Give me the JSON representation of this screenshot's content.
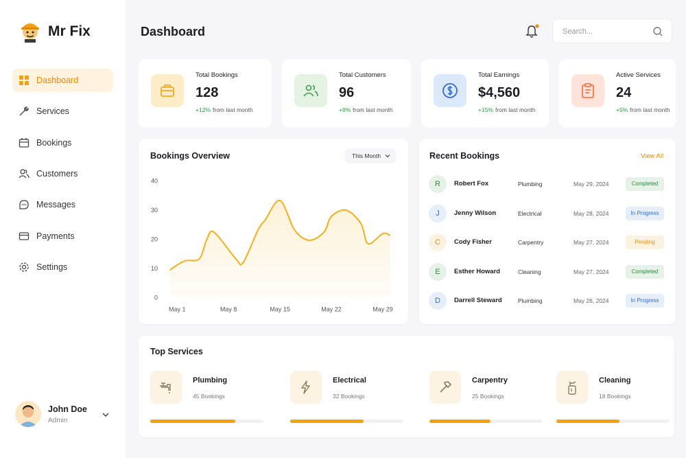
{
  "brand": "Mr Fix",
  "nav": [
    "Dashboard",
    "Services",
    "Bookings",
    "Customers",
    "Messages",
    "Payments",
    "Settings"
  ],
  "user": {
    "name": "John Doe",
    "role": "Admin"
  },
  "header": {
    "title": "Dashboard",
    "search_placeholder": "Search..."
  },
  "stats": [
    {
      "label": "Total Bookings",
      "value": "128",
      "change": "+12%",
      "note": "from last month"
    },
    {
      "label": "Total Customers",
      "value": "96",
      "change": "+8%",
      "note": "from last month"
    },
    {
      "label": "Total Earnings",
      "value": "$4,560",
      "change": "+15%",
      "note": "from last month"
    },
    {
      "label": "Active Services",
      "value": "24",
      "change": "+5%",
      "note": "from last month"
    }
  ],
  "chart_data": {
    "type": "line",
    "title": "Bookings Overview",
    "filter": "This Month",
    "color": "#f2b01e",
    "x": [
      0,
      2,
      4,
      5,
      6,
      9,
      10,
      12,
      13,
      15,
      17,
      19,
      21,
      22,
      24,
      26,
      27,
      29,
      30
    ],
    "values": [
      9.6,
      12.7,
      13.4,
      19.8,
      22.6,
      13.4,
      12.2,
      23.3,
      26.8,
      33.4,
      23.3,
      19.8,
      22.6,
      28,
      30.1,
      25.6,
      18.6,
      22.1,
      21.4
    ],
    "xlim": [
      -0.7,
      30.4
    ],
    "xticks": [
      {
        "value": 1,
        "label": "May 1"
      },
      {
        "value": 8,
        "label": "May 8"
      },
      {
        "value": 15,
        "label": "May 15"
      },
      {
        "value": 22,
        "label": "May 22"
      },
      {
        "value": 29,
        "label": "May 29"
      }
    ],
    "ylim": [
      0,
      40
    ],
    "yticks": [
      0,
      10,
      20,
      30,
      40
    ]
  },
  "recent": {
    "title": "Recent Bookings",
    "link": "View All",
    "rows": [
      {
        "initial": "R",
        "name": "Robert Fox",
        "service": "Plumbing",
        "date": "May 29, 2024",
        "status": "Completed",
        "color": "#2e8b3e"
      },
      {
        "initial": "J",
        "name": "Jenny Wilson",
        "service": "Electrical",
        "date": "May 28, 2024",
        "status": "In Progress",
        "color": "#2f6fd0"
      },
      {
        "initial": "C",
        "name": "Cody Fisher",
        "service": "Carpentry",
        "date": "May 27, 2024",
        "status": "Pending",
        "color": "#e09010"
      },
      {
        "initial": "E",
        "name": "Esther Howard",
        "service": "Cleaning",
        "date": "May 27, 2024",
        "status": "Completed",
        "color": "#2e8b3e"
      },
      {
        "initial": "D",
        "name": "Darrell Steward",
        "service": "Plumbing",
        "date": "May 26, 2024",
        "status": "In Progress",
        "color": "#2f6fd0"
      }
    ]
  },
  "top": {
    "title": "Top Services",
    "items": [
      {
        "name": "Plumbing",
        "bookings": "45 Bookings",
        "progress": 75
      },
      {
        "name": "Electrical",
        "bookings": "32 Bookings",
        "progress": 65
      },
      {
        "name": "Carpentry",
        "bookings": "25 Bookings",
        "progress": 54
      },
      {
        "name": "Cleaning",
        "bookings": "18 Bookings",
        "progress": 56
      }
    ]
  }
}
